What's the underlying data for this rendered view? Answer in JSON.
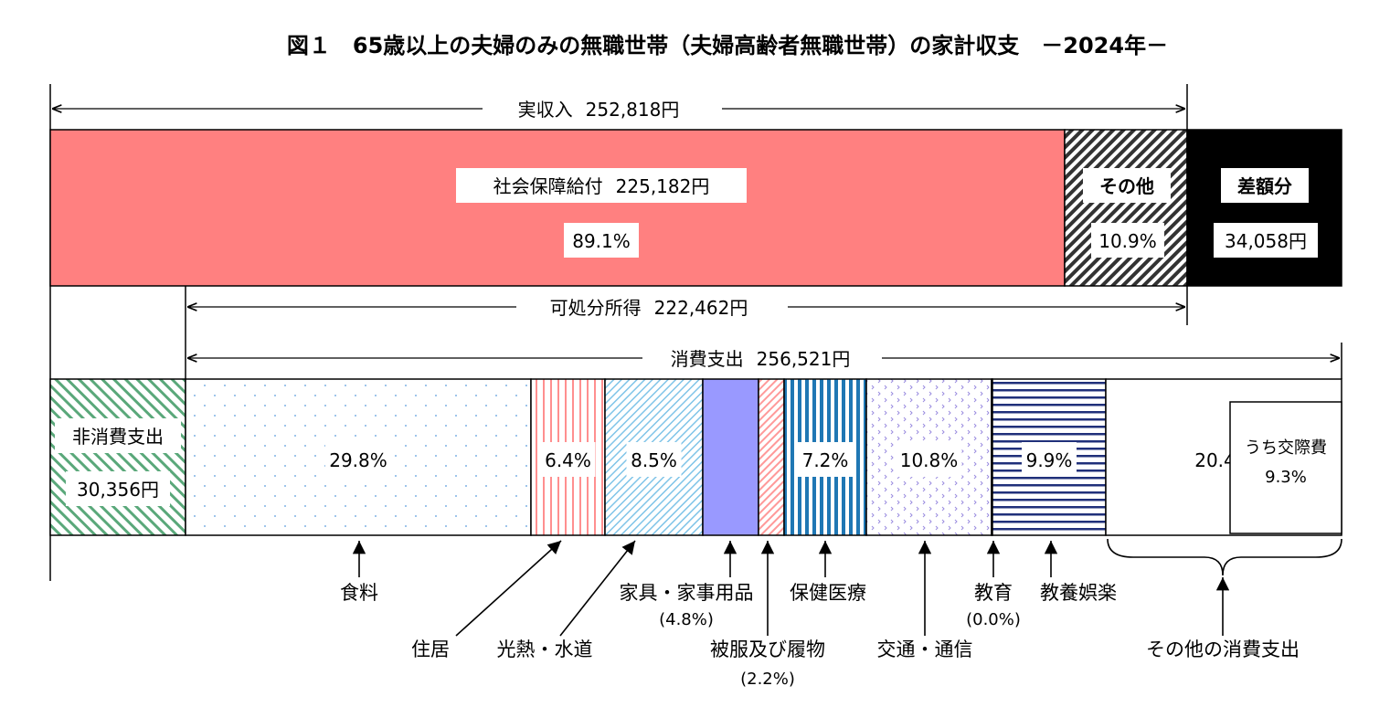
{
  "chart_data": {
    "type": "bar",
    "title": "図１　65歳以上の夫婦のみの無職世帯（夫婦高齢者無職世帯）の家計収支　－2024年－",
    "income": {
      "total_label": "実収入",
      "total_value": "252,818円",
      "segments": [
        {
          "name": "社会保障給付",
          "value_text": "225,182円",
          "percent": 89.1,
          "percent_text": "89.1%",
          "color": "#ff8080"
        },
        {
          "name": "その他",
          "percent": 10.9,
          "percent_text": "10.9%",
          "color": "#333333"
        },
        {
          "name": "差額分",
          "value_text": "34,058円",
          "color": "#000000"
        }
      ]
    },
    "disposable": {
      "label": "可処分所得",
      "value": "222,462円"
    },
    "consumption": {
      "total_label": "消費支出",
      "total_value": "256,521円",
      "non_consumption": {
        "label": "非消費支出",
        "value": "30,356円",
        "color": "#5aa87a"
      },
      "categories": [
        {
          "name": "食料",
          "percent": 29.8,
          "percent_text": "29.8%",
          "color": "#7fb2e5"
        },
        {
          "name": "住居",
          "percent": 6.4,
          "percent_text": "6.4%",
          "color": "#ff8f8f"
        },
        {
          "name": "光熱・水道",
          "percent": 8.5,
          "percent_text": "8.5%",
          "color": "#7fc4e8"
        },
        {
          "name": "家具・家事用品",
          "percent": 4.8,
          "percent_text": "(4.8%)",
          "color": "#9999ff"
        },
        {
          "name": "被服及び履物",
          "percent": 2.2,
          "percent_text": "(2.2%)",
          "color": "#ff9999"
        },
        {
          "name": "保健医療",
          "percent": 7.2,
          "percent_text": "7.2%",
          "color": "#1f77b4"
        },
        {
          "name": "交通・通信",
          "percent": 10.8,
          "percent_text": "10.8%",
          "color": "#9a8ce0"
        },
        {
          "name": "教育",
          "percent": 0.0,
          "percent_text": "(0.0%)",
          "color": "#20307a"
        },
        {
          "name": "教養娯楽",
          "percent": 9.9,
          "percent_text": "9.9%",
          "color": "#20307a"
        },
        {
          "name": "その他の消費支出",
          "percent": 20.4,
          "percent_text": "20.4%",
          "color": "#ffffff"
        }
      ],
      "sub_item": {
        "label": "うち交際費",
        "percent": 9.3,
        "percent_text": "9.3%"
      }
    }
  }
}
